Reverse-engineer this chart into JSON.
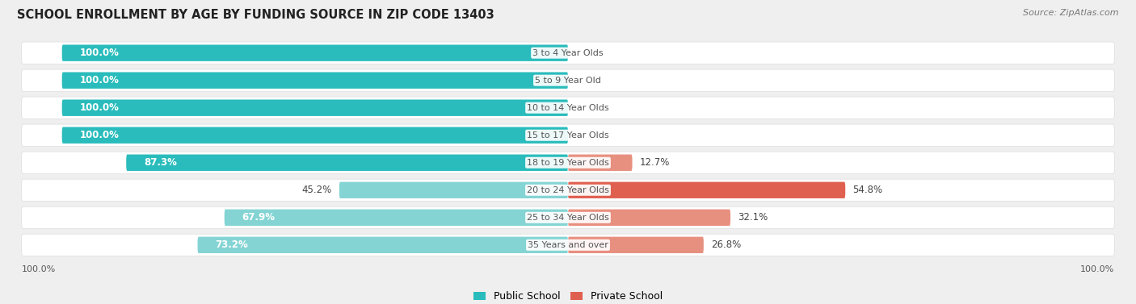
{
  "title": "SCHOOL ENROLLMENT BY AGE BY FUNDING SOURCE IN ZIP CODE 13403",
  "source": "Source: ZipAtlas.com",
  "categories": [
    "3 to 4 Year Olds",
    "5 to 9 Year Old",
    "10 to 14 Year Olds",
    "15 to 17 Year Olds",
    "18 to 19 Year Olds",
    "20 to 24 Year Olds",
    "25 to 34 Year Olds",
    "35 Years and over"
  ],
  "public_pct": [
    100.0,
    100.0,
    100.0,
    100.0,
    87.3,
    45.2,
    67.9,
    73.2
  ],
  "private_pct": [
    0.0,
    0.0,
    0.0,
    0.0,
    12.7,
    54.8,
    32.1,
    26.8
  ],
  "public_color_full": "#2abcbc",
  "public_color_light": "#85d4d4",
  "private_color_full": "#e06050",
  "private_color_light": "#f0a898",
  "private_color_mid": "#e89080",
  "row_bg_color": "#ffffff",
  "bg_color": "#efefef",
  "label_color_white": "#ffffff",
  "label_color_dark": "#444444",
  "center_label_color": "#555555",
  "title_fontsize": 10.5,
  "source_fontsize": 8,
  "bar_label_fontsize": 8.5,
  "category_fontsize": 8,
  "legend_fontsize": 9,
  "axis_label_fontsize": 8
}
